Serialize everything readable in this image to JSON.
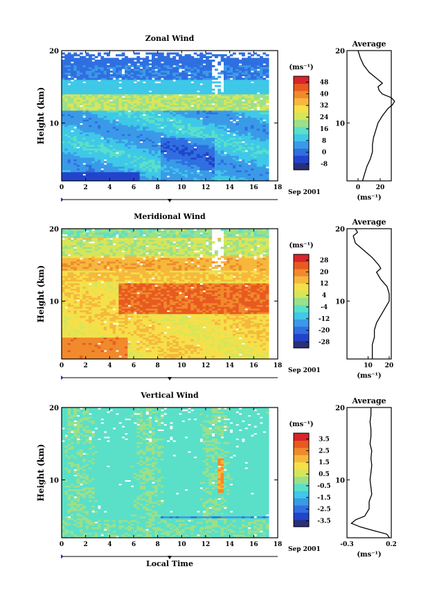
{
  "colors": {
    "scale": [
      "#2a2f7a",
      "#2244cc",
      "#2f6fe0",
      "#3a9ae8",
      "#3fc8e8",
      "#5ae0c8",
      "#9be08a",
      "#d6e65a",
      "#f5e04a",
      "#f6b83c",
      "#f08a2c",
      "#e85a20",
      "#d8242a"
    ],
    "gap": "#ffffff",
    "frame": "#000000"
  },
  "x_axis": {
    "ticks": [
      0,
      2,
      4,
      6,
      8,
      10,
      12,
      14,
      16,
      18
    ],
    "date_label": "Sep 2001",
    "xlabel": "Local Time"
  },
  "chart_data": [
    {
      "type": "heatmap",
      "title": "Zonal Wind",
      "xlabel": "",
      "ylabel": "Height (km)",
      "xlim": [
        0,
        18
      ],
      "ylim": [
        2,
        20
      ],
      "y_ticks": [
        10,
        20
      ],
      "unit": "(ms⁻¹)",
      "colorbar_ticks": [
        "-8",
        "0",
        "8",
        "16",
        "24",
        "32",
        "40",
        "48"
      ],
      "colorbar_range": [
        -12,
        52
      ],
      "data_time_range": [
        0,
        17
      ],
      "profile": [
        [
          2,
          4
        ],
        [
          3,
          6
        ],
        [
          4,
          8
        ],
        [
          5,
          11
        ],
        [
          6,
          13
        ],
        [
          7,
          13
        ],
        [
          8,
          14
        ],
        [
          9,
          16
        ],
        [
          10,
          18
        ],
        [
          11,
          22
        ],
        [
          12,
          27
        ],
        [
          12.5,
          31
        ],
        [
          13,
          33
        ],
        [
          13.5,
          30
        ],
        [
          14,
          22
        ],
        [
          14.5,
          19
        ],
        [
          15,
          18
        ],
        [
          15.5,
          22
        ],
        [
          16,
          18
        ],
        [
          17,
          10
        ],
        [
          18,
          5
        ],
        [
          19,
          2
        ],
        [
          20,
          0
        ]
      ],
      "profile_title": "Average",
      "profile_xlim": [
        -10,
        30
      ],
      "profile_ticks": [
        "0",
        "20"
      ],
      "profile_tick_values": [
        0,
        20
      ],
      "profile_unit": "(ms⁻¹)",
      "profile_y_ticks": [
        10,
        20
      ]
    },
    {
      "type": "heatmap",
      "title": "Meridional Wind",
      "xlabel": "",
      "ylabel": "Height (km)",
      "xlim": [
        0,
        18
      ],
      "ylim": [
        2,
        20
      ],
      "y_ticks": [
        10,
        20
      ],
      "unit": "(ms⁻¹)",
      "colorbar_ticks": [
        "-28",
        "-20",
        "-12",
        "-4",
        "4",
        "12",
        "20",
        "28"
      ],
      "colorbar_range": [
        -32,
        32
      ],
      "data_time_range": [
        0,
        17
      ],
      "profile": [
        [
          2,
          12
        ],
        [
          3,
          12
        ],
        [
          4,
          12
        ],
        [
          5,
          13
        ],
        [
          6,
          13
        ],
        [
          7,
          14
        ],
        [
          8,
          16
        ],
        [
          9,
          18
        ],
        [
          10,
          20
        ],
        [
          11,
          20
        ],
        [
          12,
          19
        ],
        [
          13,
          16
        ],
        [
          14,
          14
        ],
        [
          14.5,
          16
        ],
        [
          15,
          15
        ],
        [
          16,
          12
        ],
        [
          17,
          8
        ],
        [
          18,
          4
        ],
        [
          19,
          3
        ],
        [
          19.5,
          5
        ],
        [
          20,
          4
        ]
      ],
      "profile_title": "Average",
      "profile_xlim": [
        0,
        21
      ],
      "profile_ticks": [
        "10",
        "20"
      ],
      "profile_tick_values": [
        10,
        20
      ],
      "profile_unit": "(ms⁻¹)",
      "profile_y_ticks": [
        10,
        20
      ]
    },
    {
      "type": "heatmap",
      "title": "Vertical Wind",
      "xlabel": "Local Time",
      "ylabel": "Height (km)",
      "xlim": [
        0,
        18
      ],
      "ylim": [
        2,
        20
      ],
      "y_ticks": [
        10,
        20
      ],
      "unit": "(ms⁻¹)",
      "colorbar_ticks": [
        "-3.5",
        "-2.5",
        "-1.5",
        "-0.5",
        "0.5",
        "1.5",
        "2.5",
        "3.5"
      ],
      "colorbar_range": [
        -4,
        4
      ],
      "data_time_range": [
        0,
        17
      ],
      "profile": [
        [
          2,
          0.18
        ],
        [
          2.5,
          0.15
        ],
        [
          3,
          0.0
        ],
        [
          3.5,
          -0.15
        ],
        [
          4,
          -0.25
        ],
        [
          4.5,
          -0.2
        ],
        [
          5,
          -0.1
        ],
        [
          6,
          -0.05
        ],
        [
          7,
          -0.05
        ],
        [
          8,
          -0.02
        ],
        [
          9,
          -0.03
        ],
        [
          10,
          -0.04
        ],
        [
          11,
          -0.03
        ],
        [
          12,
          -0.02
        ],
        [
          13,
          -0.03
        ],
        [
          14,
          -0.02
        ],
        [
          15,
          -0.04
        ],
        [
          16,
          -0.03
        ],
        [
          17,
          -0.03
        ],
        [
          18,
          -0.04
        ],
        [
          19,
          -0.03
        ],
        [
          20,
          -0.03
        ]
      ],
      "profile_title": "Average",
      "profile_xlim": [
        -0.3,
        0.2
      ],
      "profile_ticks": [
        "-0.3",
        "0.2"
      ],
      "profile_tick_values": [
        -0.3,
        0.2
      ],
      "profile_unit": "(ms⁻¹)",
      "profile_y_ticks": [
        10,
        20
      ]
    }
  ]
}
